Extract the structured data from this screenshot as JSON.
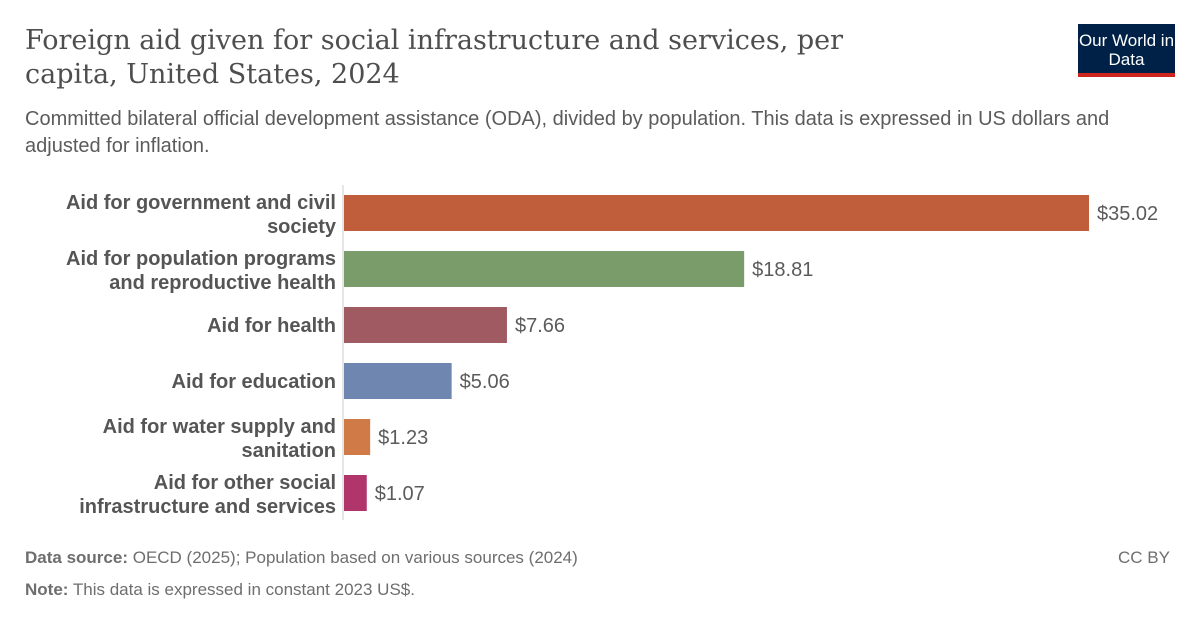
{
  "title": "Foreign aid given for social infrastructure and services, per capita, United States, 2024",
  "subtitle": "Committed bilateral official development assistance (ODA), divided by population. This data is expressed in US dollars and adjusted for inflation.",
  "logo": "Our World in Data",
  "footer": {
    "source_label": "Data source:",
    "source": "OECD (2025); Population based on various sources (2024)",
    "note_label": "Note:",
    "note": "This data is expressed in constant 2023 US$.",
    "license": "CC BY"
  },
  "chart_data": {
    "type": "bar",
    "orientation": "horizontal",
    "categories": [
      [
        "Aid for government and civil",
        "society"
      ],
      [
        "Aid for population programs",
        "and reproductive health"
      ],
      [
        "Aid for health"
      ],
      [
        "Aid for education"
      ],
      [
        "Aid for water supply and",
        "sanitation"
      ],
      [
        "Aid for other social",
        "infrastructure and services"
      ]
    ],
    "values": [
      35.02,
      18.81,
      7.66,
      5.06,
      1.23,
      1.07
    ],
    "value_labels": [
      "$35.02",
      "$18.81",
      "$7.66",
      "$5.06",
      "$1.23",
      "$1.07"
    ],
    "colors": [
      "#c05d3b",
      "#7a9c6b",
      "#a05a61",
      "#6f87b0",
      "#d07a47",
      "#b0356b"
    ],
    "xlim": [
      0,
      35.02
    ],
    "grid": false
  }
}
